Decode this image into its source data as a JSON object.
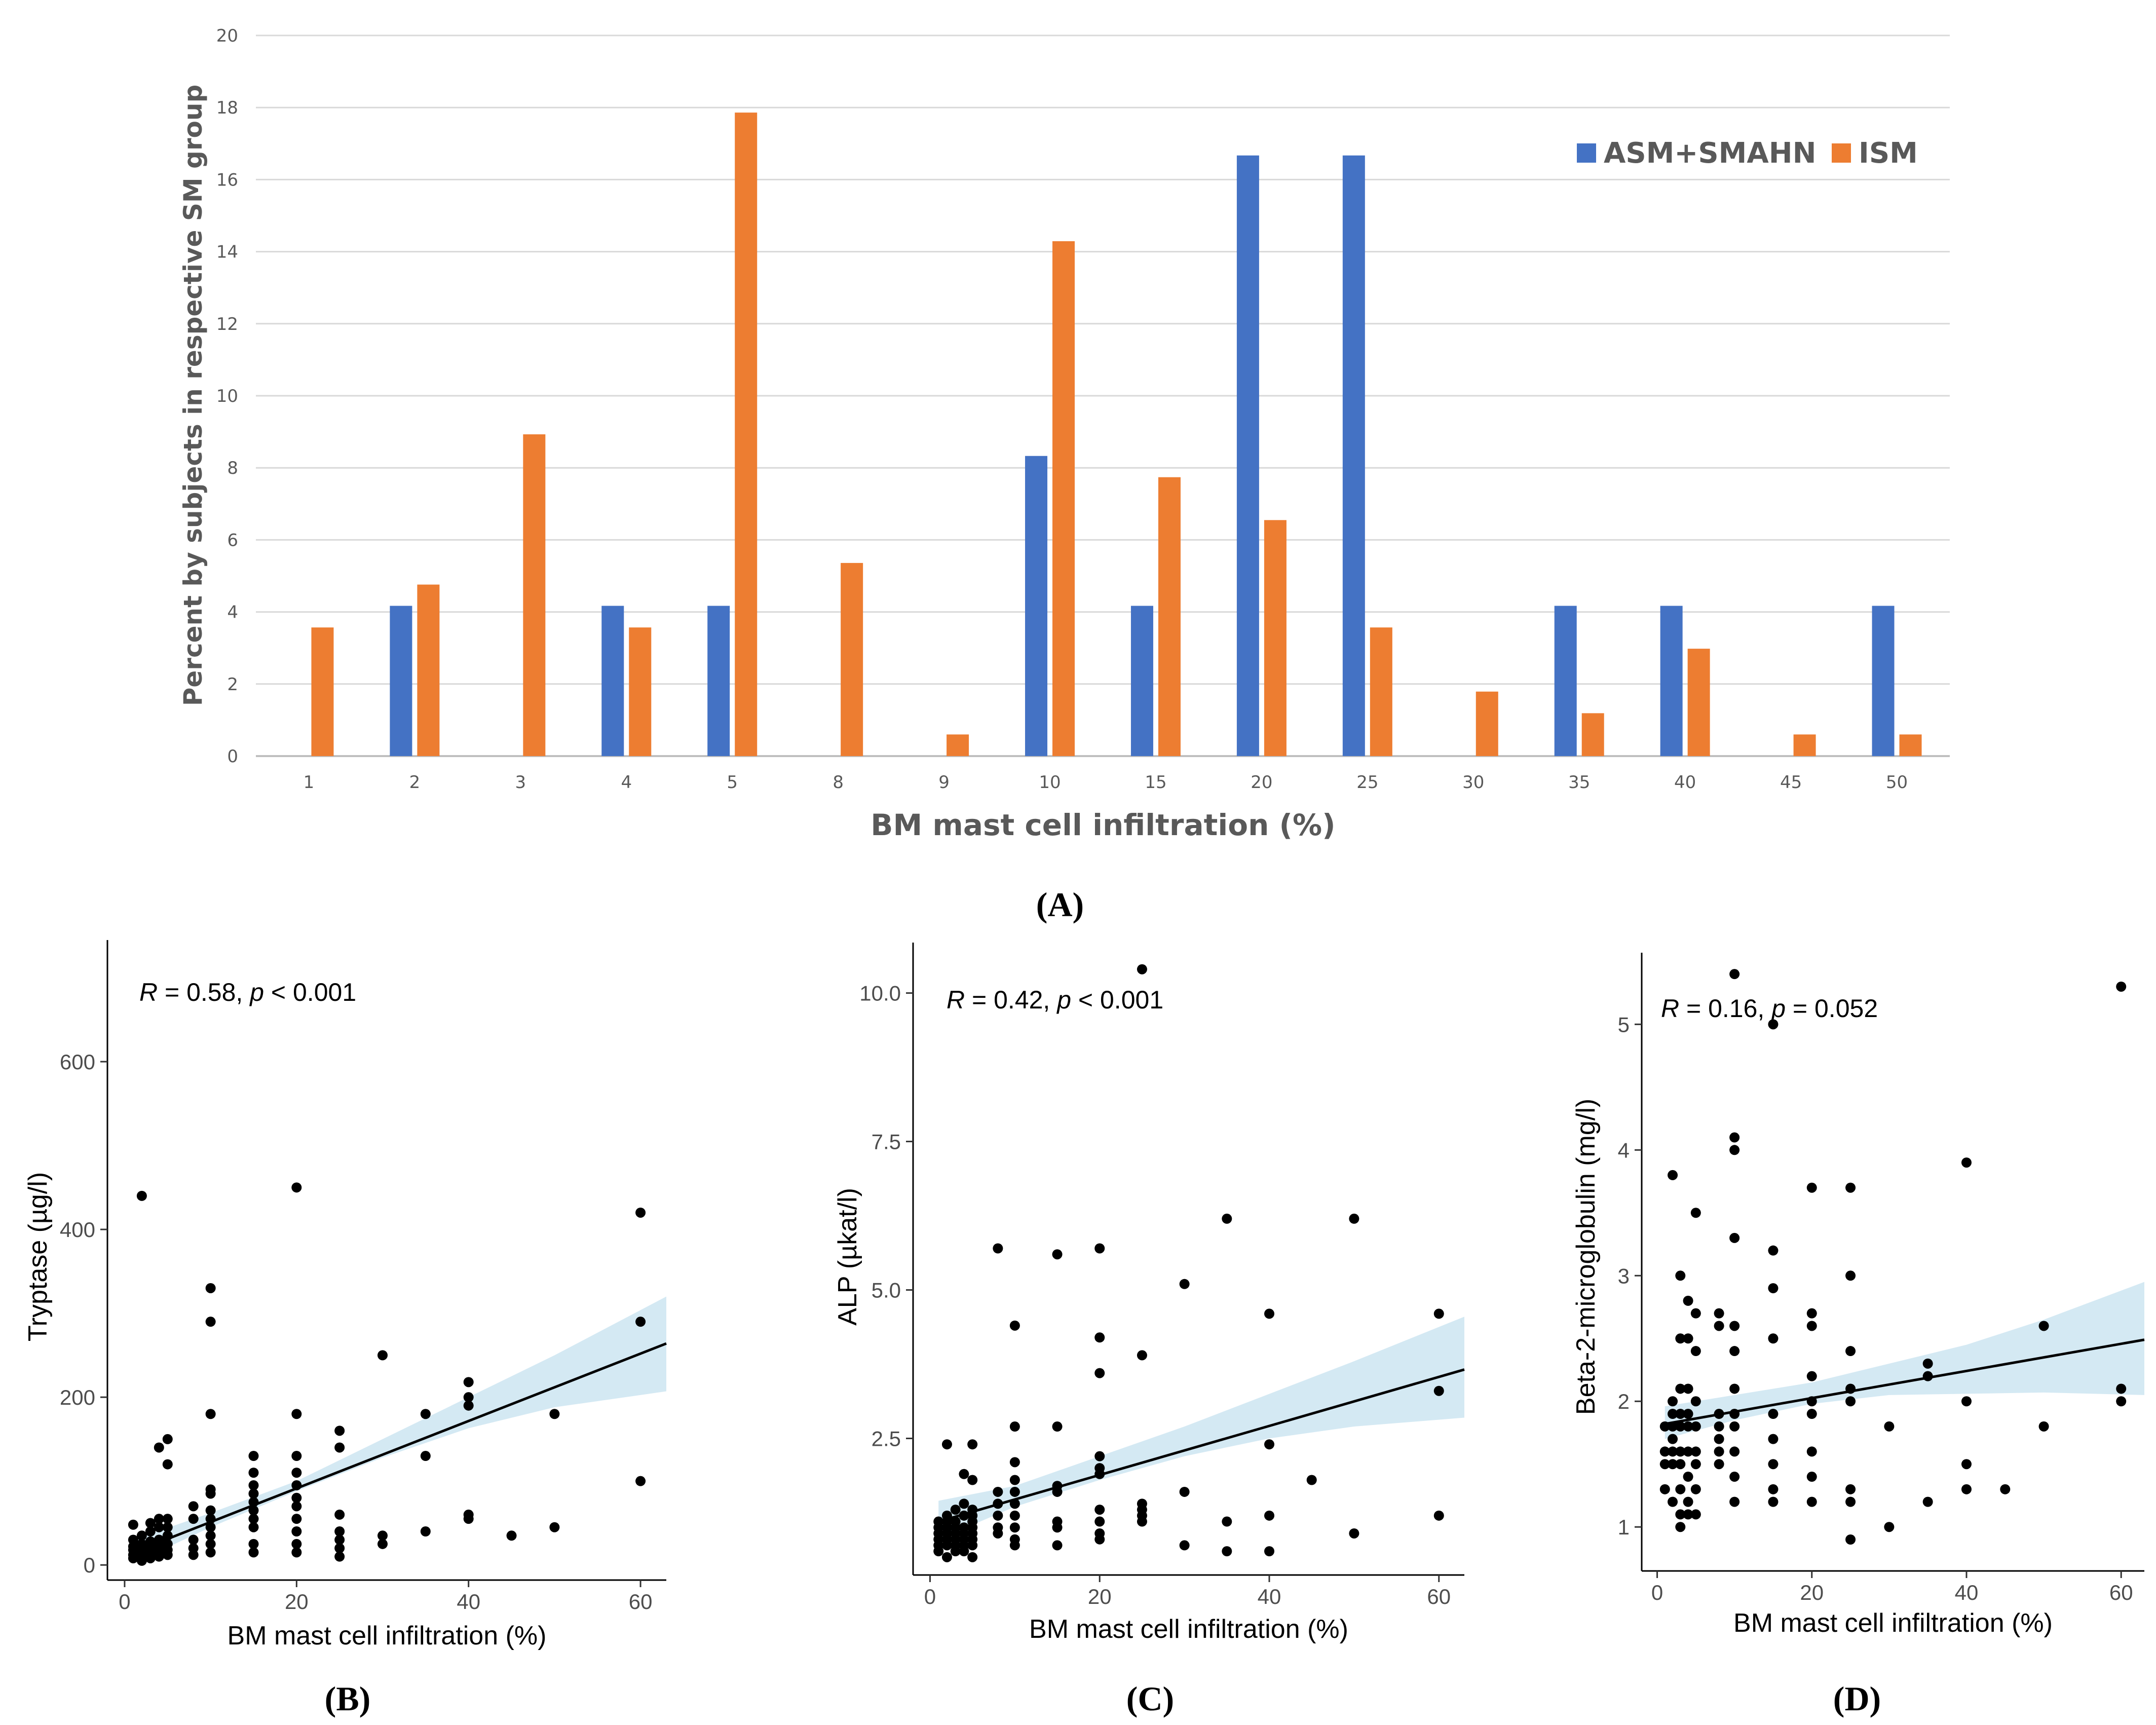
{
  "chart_data": [
    {
      "id": "A",
      "type": "bar",
      "panel_label": "(A)",
      "title": "",
      "xlabel": "BM mast cell infiltration (%)",
      "ylabel": "Percent by subjects in respective SM group",
      "ylim": [
        0,
        20
      ],
      "yticks": [
        "0",
        "2",
        "4",
        "6",
        "8",
        "10",
        "12",
        "14",
        "16",
        "18",
        "20"
      ],
      "grid": true,
      "legend_position": "top-right",
      "categories": [
        "1",
        "2",
        "3",
        "4",
        "5",
        "8",
        "9",
        "10",
        "15",
        "20",
        "25",
        "30",
        "35",
        "40",
        "45",
        "50"
      ],
      "series": [
        {
          "name": "ASM+SMAHN",
          "color": "#4472C4",
          "values": [
            0,
            4.17,
            0,
            4.17,
            4.17,
            0,
            0,
            8.33,
            4.17,
            16.67,
            16.67,
            0,
            4.17,
            4.17,
            0,
            4.17
          ]
        },
        {
          "name": "ISM",
          "color": "#ED7D31",
          "values": [
            3.57,
            4.76,
            8.93,
            3.57,
            17.86,
            5.36,
            0.6,
            14.29,
            7.74,
            6.55,
            3.57,
            1.79,
            1.19,
            2.98,
            0.6,
            0.6
          ]
        }
      ]
    },
    {
      "id": "B",
      "type": "scatter",
      "panel_label": "(B)",
      "xlabel": "BM mast cell infiltration (%)",
      "ylabel": "Tryptase (µg/l)",
      "annotation": {
        "r_symbol": "R",
        "r_text": " = 0.58, ",
        "p_symbol": "p",
        "p_text": " < 0.001"
      },
      "xlim": [
        -2,
        63
      ],
      "ylim": [
        -18,
        745
      ],
      "xticks": [
        0,
        20,
        40,
        60
      ],
      "xtick_labels": [
        "0",
        "20",
        "40",
        "60"
      ],
      "yticks": [
        0,
        200,
        400,
        600
      ],
      "ytick_labels": [
        "0",
        "200",
        "400",
        "600"
      ],
      "fit": {
        "x": [
          1,
          63
        ],
        "y": [
          15,
          264
        ]
      },
      "band": {
        "x": [
          1,
          10,
          20,
          30,
          40,
          50,
          63
        ],
        "lower": [
          2,
          45,
          88,
          128,
          163,
          188,
          207
        ],
        "upper": [
          30,
          62,
          100,
          150,
          200,
          250,
          320
        ]
      },
      "points": [
        [
          1,
          8
        ],
        [
          1,
          12
        ],
        [
          1,
          18
        ],
        [
          1,
          22
        ],
        [
          1,
          30
        ],
        [
          1,
          48
        ],
        [
          2,
          5
        ],
        [
          2,
          10
        ],
        [
          2,
          15
        ],
        [
          2,
          20
        ],
        [
          2,
          25
        ],
        [
          2,
          35
        ],
        [
          2,
          440
        ],
        [
          3,
          8
        ],
        [
          3,
          12
        ],
        [
          3,
          15
        ],
        [
          3,
          22
        ],
        [
          3,
          28
        ],
        [
          3,
          40
        ],
        [
          3,
          50
        ],
        [
          4,
          10
        ],
        [
          4,
          15
        ],
        [
          4,
          20
        ],
        [
          4,
          25
        ],
        [
          4,
          30
        ],
        [
          4,
          45
        ],
        [
          4,
          55
        ],
        [
          4,
          140
        ],
        [
          5,
          12
        ],
        [
          5,
          18
        ],
        [
          5,
          25
        ],
        [
          5,
          35
        ],
        [
          5,
          45
        ],
        [
          5,
          55
        ],
        [
          5,
          120
        ],
        [
          5,
          150
        ],
        [
          8,
          12
        ],
        [
          8,
          20
        ],
        [
          8,
          30
        ],
        [
          8,
          55
        ],
        [
          8,
          70
        ],
        [
          10,
          15
        ],
        [
          10,
          25
        ],
        [
          10,
          35
        ],
        [
          10,
          45
        ],
        [
          10,
          55
        ],
        [
          10,
          65
        ],
        [
          10,
          85
        ],
        [
          10,
          90
        ],
        [
          10,
          180
        ],
        [
          10,
          290
        ],
        [
          10,
          330
        ],
        [
          15,
          15
        ],
        [
          15,
          25
        ],
        [
          15,
          45
        ],
        [
          15,
          55
        ],
        [
          15,
          65
        ],
        [
          15,
          75
        ],
        [
          15,
          85
        ],
        [
          15,
          95
        ],
        [
          15,
          110
        ],
        [
          15,
          130
        ],
        [
          20,
          15
        ],
        [
          20,
          25
        ],
        [
          20,
          40
        ],
        [
          20,
          55
        ],
        [
          20,
          70
        ],
        [
          20,
          80
        ],
        [
          20,
          95
        ],
        [
          20,
          110
        ],
        [
          20,
          130
        ],
        [
          20,
          180
        ],
        [
          20,
          450
        ],
        [
          25,
          10
        ],
        [
          25,
          20
        ],
        [
          25,
          30
        ],
        [
          25,
          40
        ],
        [
          25,
          60
        ],
        [
          25,
          140
        ],
        [
          25,
          160
        ],
        [
          30,
          25
        ],
        [
          30,
          35
        ],
        [
          30,
          250
        ],
        [
          35,
          40
        ],
        [
          35,
          130
        ],
        [
          35,
          180
        ],
        [
          40,
          55
        ],
        [
          40,
          60
        ],
        [
          40,
          190
        ],
        [
          40,
          200
        ],
        [
          40,
          218
        ],
        [
          45,
          35
        ],
        [
          50,
          45
        ],
        [
          50,
          180
        ],
        [
          60,
          100
        ],
        [
          60,
          290
        ],
        [
          60,
          420
        ]
      ]
    },
    {
      "id": "C",
      "type": "scatter",
      "panel_label": "(C)",
      "xlabel": "BM mast cell infiltration (%)",
      "ylabel": "ALP (µkat/l)",
      "annotation": {
        "r_symbol": "R",
        "r_text": " = 0.42, ",
        "p_symbol": "p",
        "p_text": " < 0.001"
      },
      "xlim": [
        -2,
        63
      ],
      "ylim": [
        0.2,
        10.85
      ],
      "xticks": [
        0,
        20,
        40,
        60
      ],
      "xtick_labels": [
        "0",
        "20",
        "40",
        "60"
      ],
      "yticks": [
        2.5,
        5.0,
        7.5,
        10.0
      ],
      "ytick_labels": [
        "2.5",
        "5.0",
        "7.5",
        "10.0"
      ],
      "fit": {
        "x": [
          1,
          63
        ],
        "y": [
          1.1,
          3.66
        ]
      },
      "band": {
        "x": [
          1,
          10,
          20,
          30,
          40,
          50,
          63
        ],
        "lower": [
          0.8,
          1.35,
          1.8,
          2.2,
          2.5,
          2.7,
          2.85
        ],
        "upper": [
          1.45,
          1.7,
          2.2,
          2.7,
          3.25,
          3.8,
          4.55
        ]
      },
      "points": [
        [
          1,
          0.6
        ],
        [
          1,
          0.7
        ],
        [
          1,
          0.8
        ],
        [
          1,
          0.9
        ],
        [
          1,
          1.0
        ],
        [
          1,
          1.1
        ],
        [
          2,
          0.5
        ],
        [
          2,
          0.7
        ],
        [
          2,
          0.8
        ],
        [
          2,
          0.9
        ],
        [
          2,
          1.0
        ],
        [
          2,
          1.1
        ],
        [
          2,
          1.2
        ],
        [
          2,
          2.4
        ],
        [
          3,
          0.6
        ],
        [
          3,
          0.7
        ],
        [
          3,
          0.8
        ],
        [
          3,
          0.9
        ],
        [
          3,
          1.0
        ],
        [
          3,
          1.1
        ],
        [
          3,
          1.3
        ],
        [
          4,
          0.6
        ],
        [
          4,
          0.7
        ],
        [
          4,
          0.8
        ],
        [
          4,
          0.9
        ],
        [
          4,
          1.0
        ],
        [
          4,
          1.2
        ],
        [
          4,
          1.4
        ],
        [
          4,
          1.9
        ],
        [
          5,
          0.5
        ],
        [
          5,
          0.7
        ],
        [
          5,
          0.8
        ],
        [
          5,
          0.9
        ],
        [
          5,
          1.0
        ],
        [
          5,
          1.1
        ],
        [
          5,
          1.2
        ],
        [
          5,
          1.3
        ],
        [
          5,
          1.8
        ],
        [
          5,
          2.4
        ],
        [
          8,
          0.9
        ],
        [
          8,
          1.0
        ],
        [
          8,
          1.2
        ],
        [
          8,
          1.4
        ],
        [
          8,
          1.6
        ],
        [
          8,
          5.7
        ],
        [
          10,
          0.7
        ],
        [
          10,
          0.8
        ],
        [
          10,
          1.0
        ],
        [
          10,
          1.2
        ],
        [
          10,
          1.4
        ],
        [
          10,
          1.6
        ],
        [
          10,
          1.8
        ],
        [
          10,
          2.1
        ],
        [
          10,
          2.7
        ],
        [
          10,
          4.4
        ],
        [
          15,
          0.7
        ],
        [
          15,
          1.0
        ],
        [
          15,
          1.1
        ],
        [
          15,
          1.6
        ],
        [
          15,
          1.7
        ],
        [
          15,
          2.7
        ],
        [
          15,
          5.6
        ],
        [
          20,
          0.8
        ],
        [
          20,
          0.9
        ],
        [
          20,
          1.1
        ],
        [
          20,
          1.3
        ],
        [
          20,
          1.9
        ],
        [
          20,
          2.0
        ],
        [
          20,
          2.2
        ],
        [
          20,
          3.6
        ],
        [
          20,
          4.2
        ],
        [
          20,
          5.7
        ],
        [
          25,
          1.1
        ],
        [
          25,
          1.2
        ],
        [
          25,
          1.3
        ],
        [
          25,
          1.4
        ],
        [
          25,
          3.9
        ],
        [
          25,
          10.4
        ],
        [
          30,
          0.7
        ],
        [
          30,
          1.6
        ],
        [
          30,
          5.1
        ],
        [
          35,
          0.6
        ],
        [
          35,
          1.1
        ],
        [
          35,
          6.2
        ],
        [
          40,
          0.6
        ],
        [
          40,
          1.2
        ],
        [
          40,
          2.4
        ],
        [
          40,
          4.6
        ],
        [
          45,
          1.8
        ],
        [
          50,
          0.9
        ],
        [
          50,
          6.2
        ],
        [
          60,
          1.2
        ],
        [
          60,
          3.3
        ],
        [
          60,
          4.6
        ]
      ]
    },
    {
      "id": "D",
      "type": "scatter",
      "panel_label": "(D)",
      "xlabel": "BM mast cell infiltration (%)",
      "ylabel": "Beta-2-microglobulin (mg/l)",
      "annotation": {
        "r_symbol": "R",
        "r_text": " = 0.16, ",
        "p_symbol": "p",
        "p_text": " = 0.052"
      },
      "xlim": [
        -2,
        63
      ],
      "ylim": [
        0.65,
        5.57
      ],
      "xticks": [
        0,
        20,
        40,
        60
      ],
      "xtick_labels": [
        "0",
        "20",
        "40",
        "60"
      ],
      "yticks": [
        1,
        2,
        3,
        4,
        5
      ],
      "ytick_labels": [
        "1",
        "2",
        "3",
        "4",
        "5"
      ],
      "fit": {
        "x": [
          1,
          63
        ],
        "y": [
          1.82,
          2.49
        ]
      },
      "band": {
        "x": [
          1,
          10,
          20,
          30,
          40,
          50,
          63
        ],
        "lower": [
          1.7,
          1.85,
          1.98,
          2.05,
          2.06,
          2.07,
          2.05
        ],
        "upper": [
          1.96,
          2.05,
          2.15,
          2.3,
          2.45,
          2.65,
          2.95
        ]
      },
      "points": [
        [
          1,
          1.3
        ],
        [
          1,
          1.5
        ],
        [
          1,
          1.6
        ],
        [
          1,
          1.8
        ],
        [
          2,
          1.2
        ],
        [
          2,
          1.5
        ],
        [
          2,
          1.6
        ],
        [
          2,
          1.7
        ],
        [
          2,
          1.8
        ],
        [
          2,
          1.9
        ],
        [
          2,
          2.0
        ],
        [
          2,
          3.8
        ],
        [
          3,
          1.0
        ],
        [
          3,
          1.1
        ],
        [
          3,
          1.3
        ],
        [
          3,
          1.5
        ],
        [
          3,
          1.6
        ],
        [
          3,
          1.8
        ],
        [
          3,
          1.9
        ],
        [
          3,
          2.1
        ],
        [
          3,
          2.5
        ],
        [
          3,
          3.0
        ],
        [
          4,
          1.1
        ],
        [
          4,
          1.2
        ],
        [
          4,
          1.4
        ],
        [
          4,
          1.6
        ],
        [
          4,
          1.8
        ],
        [
          4,
          1.9
        ],
        [
          4,
          2.1
        ],
        [
          4,
          2.5
        ],
        [
          4,
          2.8
        ],
        [
          5,
          1.1
        ],
        [
          5,
          1.3
        ],
        [
          5,
          1.5
        ],
        [
          5,
          1.6
        ],
        [
          5,
          1.8
        ],
        [
          5,
          2.0
        ],
        [
          5,
          2.4
        ],
        [
          5,
          2.7
        ],
        [
          5,
          3.5
        ],
        [
          8,
          1.5
        ],
        [
          8,
          1.6
        ],
        [
          8,
          1.7
        ],
        [
          8,
          1.8
        ],
        [
          8,
          1.9
        ],
        [
          8,
          2.6
        ],
        [
          8,
          2.7
        ],
        [
          10,
          1.2
        ],
        [
          10,
          1.4
        ],
        [
          10,
          1.6
        ],
        [
          10,
          1.8
        ],
        [
          10,
          1.9
        ],
        [
          10,
          2.1
        ],
        [
          10,
          2.4
        ],
        [
          10,
          2.6
        ],
        [
          10,
          3.3
        ],
        [
          10,
          4.0
        ],
        [
          10,
          4.1
        ],
        [
          10,
          5.4
        ],
        [
          15,
          1.2
        ],
        [
          15,
          1.3
        ],
        [
          15,
          1.5
        ],
        [
          15,
          1.7
        ],
        [
          15,
          1.9
        ],
        [
          15,
          2.5
        ],
        [
          15,
          2.9
        ],
        [
          15,
          3.2
        ],
        [
          15,
          5.0
        ],
        [
          20,
          1.2
        ],
        [
          20,
          1.4
        ],
        [
          20,
          1.6
        ],
        [
          20,
          1.9
        ],
        [
          20,
          2.0
        ],
        [
          20,
          2.2
        ],
        [
          20,
          2.6
        ],
        [
          20,
          2.7
        ],
        [
          20,
          3.7
        ],
        [
          25,
          0.9
        ],
        [
          25,
          1.2
        ],
        [
          25,
          1.3
        ],
        [
          25,
          2.0
        ],
        [
          25,
          2.1
        ],
        [
          25,
          2.4
        ],
        [
          25,
          3.0
        ],
        [
          25,
          3.7
        ],
        [
          30,
          1.0
        ],
        [
          30,
          1.8
        ],
        [
          35,
          1.2
        ],
        [
          35,
          2.2
        ],
        [
          35,
          2.3
        ],
        [
          40,
          1.3
        ],
        [
          40,
          1.5
        ],
        [
          40,
          2.0
        ],
        [
          40,
          3.9
        ],
        [
          45,
          1.3
        ],
        [
          50,
          1.8
        ],
        [
          50,
          2.6
        ],
        [
          60,
          2.0
        ],
        [
          60,
          2.1
        ],
        [
          60,
          5.3
        ]
      ]
    }
  ]
}
